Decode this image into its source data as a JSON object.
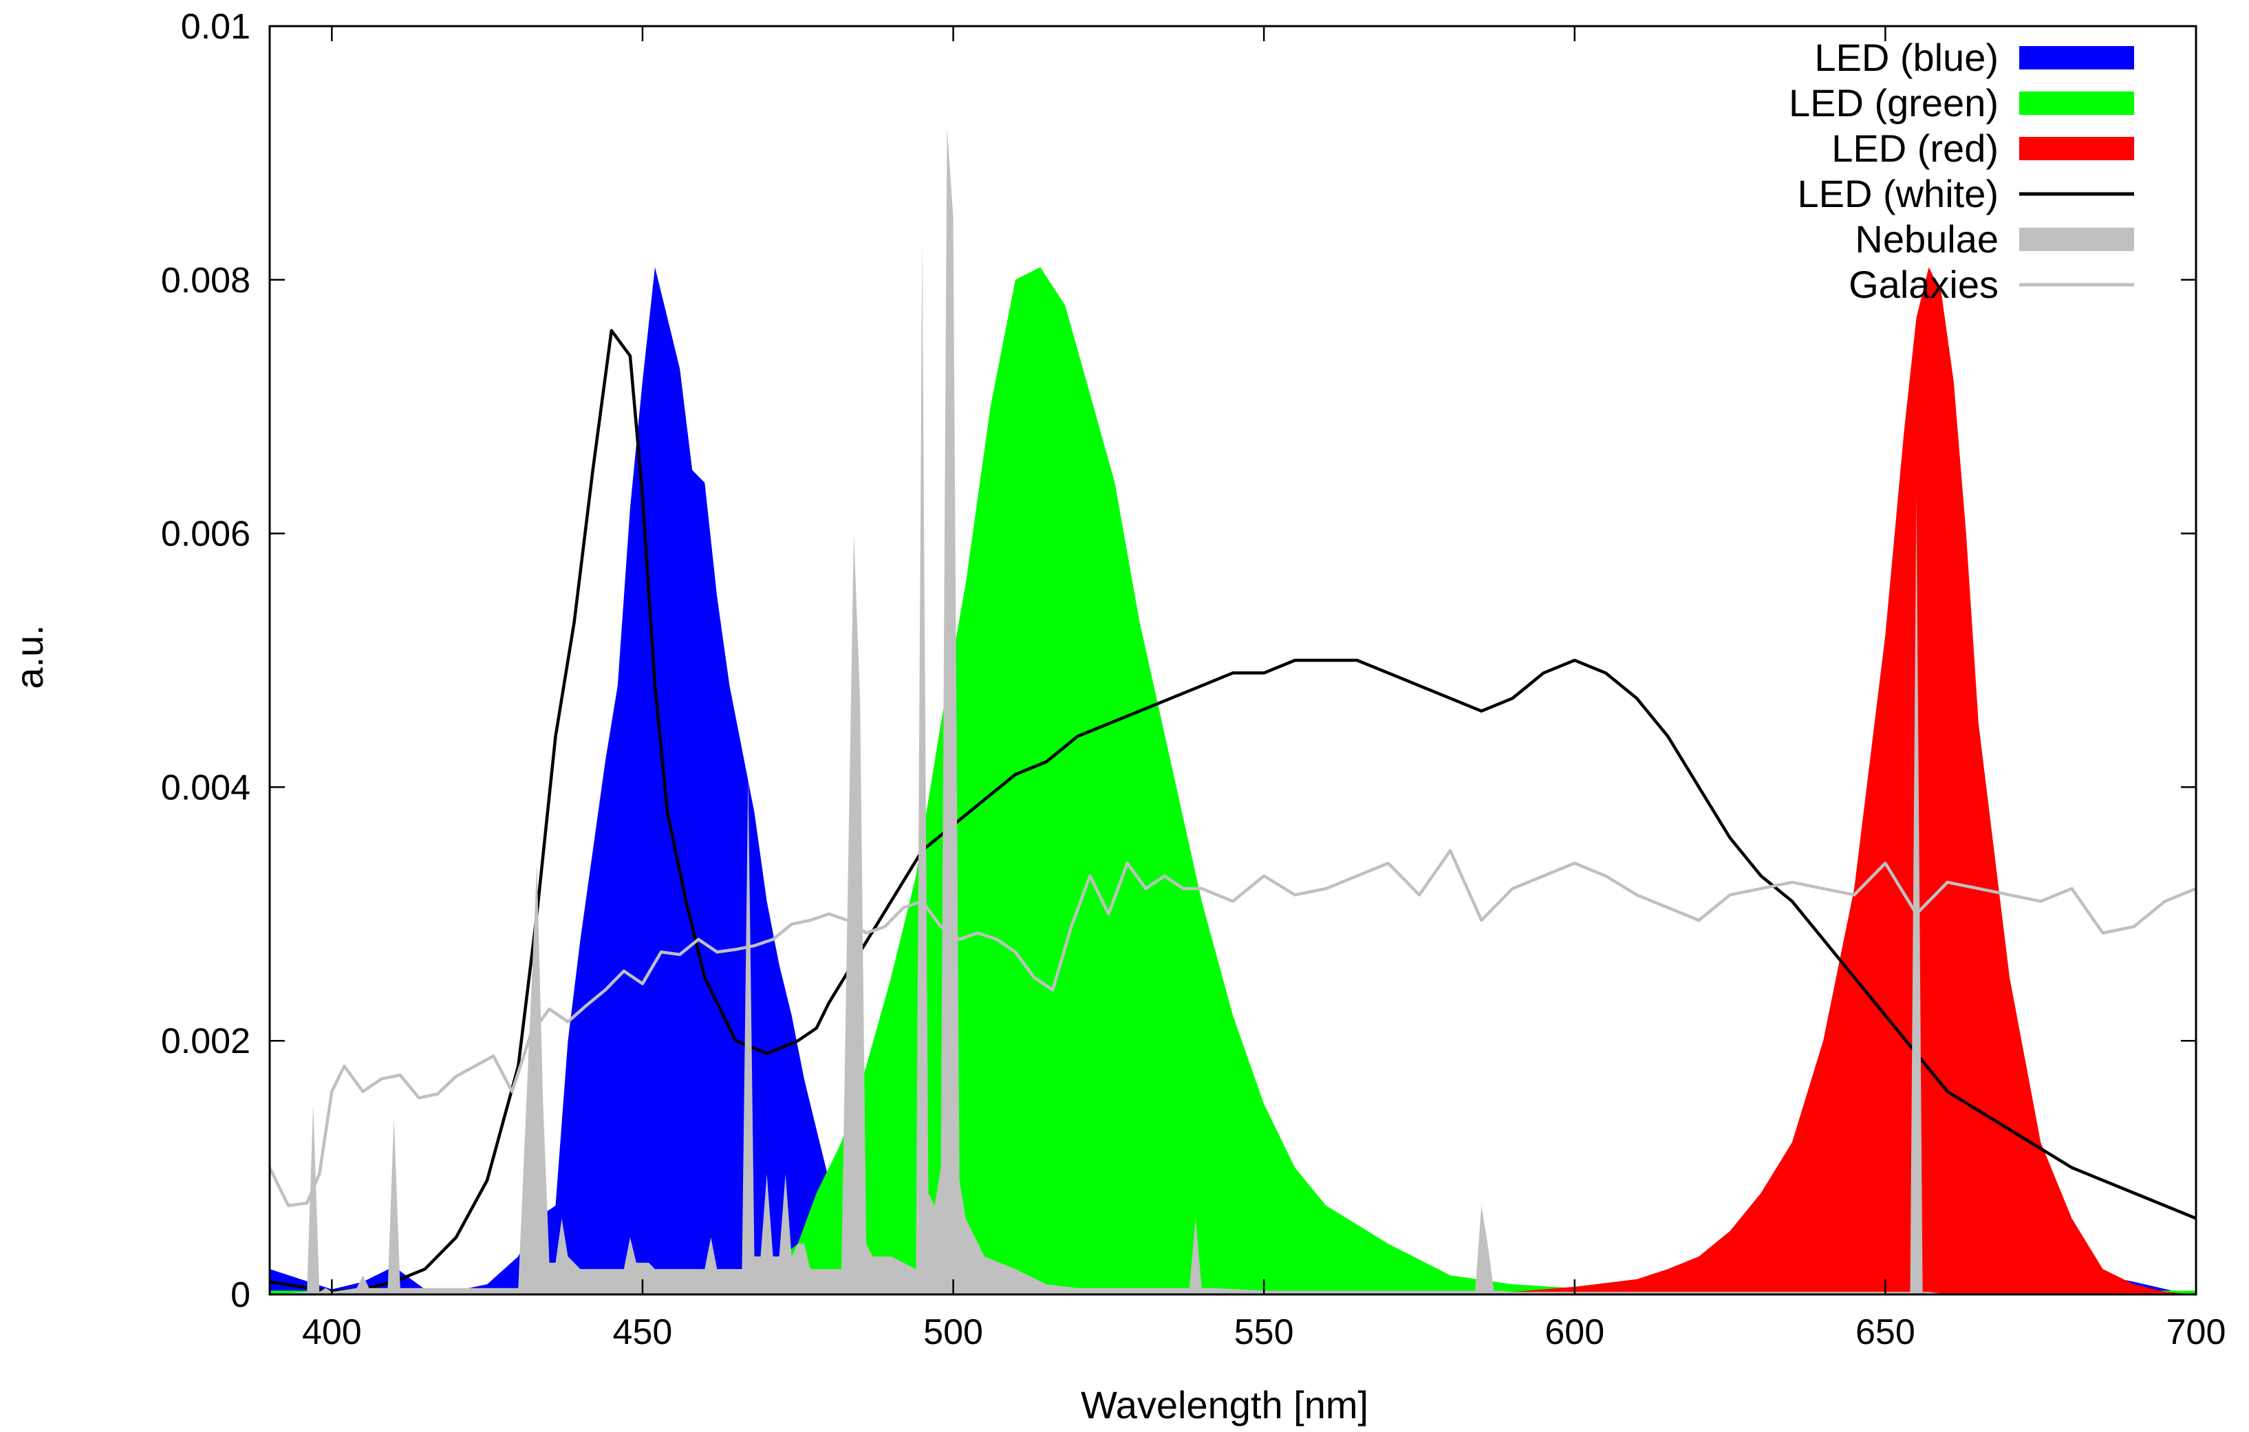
{
  "chart_data": {
    "type": "area",
    "title": "",
    "xlabel": "Wavelength [nm]",
    "ylabel": "a.u.",
    "xlim": [
      390,
      700
    ],
    "ylim": [
      0,
      0.01
    ],
    "xticks": [
      400,
      450,
      500,
      550,
      600,
      650,
      700
    ],
    "xtick_labels": [
      "400",
      "450",
      "500",
      "550",
      "600",
      "650",
      "700"
    ],
    "yticks": [
      0,
      0.002,
      0.004,
      0.006,
      0.008,
      0.01
    ],
    "ytick_labels": [
      "0",
      "0.002",
      "0.004",
      "0.006",
      "0.008",
      "0.01"
    ],
    "grid": false,
    "legend_position": "top-right",
    "series": [
      {
        "name": "LED (blue)",
        "style": "filled",
        "color": "#0000ff",
        "x": [
          390,
          395,
          400,
          405,
          410,
          415,
          420,
          425,
          430,
          433,
          436,
          438,
          440,
          442,
          444,
          446,
          448,
          450,
          452,
          454,
          456,
          458,
          460,
          462,
          464,
          466,
          468,
          470,
          472,
          474,
          476,
          478,
          480,
          482,
          485,
          488,
          490,
          495,
          500,
          505,
          510,
          520,
          530,
          540,
          550,
          560,
          580,
          600,
          620,
          640,
          660,
          680,
          690,
          697,
          700
        ],
        "y": [
          0.0002,
          0.00012,
          4e-05,
          0.0001,
          0.00022,
          4e-05,
          3e-05,
          8e-05,
          0.0003,
          0.0006,
          0.0007,
          0.002,
          0.0028,
          0.0035,
          0.0042,
          0.0048,
          0.0062,
          0.0072,
          0.0081,
          0.0077,
          0.0073,
          0.0065,
          0.0064,
          0.0055,
          0.0048,
          0.0043,
          0.0038,
          0.0031,
          0.0026,
          0.0022,
          0.0017,
          0.0013,
          0.0009,
          0.0006,
          0.0003,
          0.00012,
          5e-05,
          4e-05,
          3e-05,
          3e-05,
          3e-05,
          3e-05,
          3e-05,
          3e-05,
          3e-05,
          3e-05,
          3e-05,
          3e-05,
          3e-05,
          3e-05,
          3e-05,
          0.0002,
          0.0001,
          2e-05,
          0
        ]
      },
      {
        "name": "LED (green)",
        "style": "filled",
        "color": "#00ff00",
        "x": [
          390,
          460,
          470,
          475,
          478,
          482,
          486,
          490,
          494,
          498,
          502,
          506,
          510,
          514,
          518,
          522,
          526,
          530,
          535,
          540,
          545,
          550,
          555,
          560,
          570,
          580,
          590,
          600,
          620,
          650,
          700
        ],
        "y": [
          3e-05,
          3e-05,
          0.0002,
          0.0004,
          0.0008,
          0.0012,
          0.0018,
          0.0025,
          0.0033,
          0.0045,
          0.0056,
          0.007,
          0.008,
          0.0081,
          0.0078,
          0.0071,
          0.0064,
          0.0053,
          0.0042,
          0.0031,
          0.0022,
          0.0015,
          0.001,
          0.0007,
          0.0004,
          0.00015,
          8e-05,
          5e-05,
          3e-05,
          3e-05,
          3e-05
        ]
      },
      {
        "name": "LED (red)",
        "style": "filled",
        "color": "#ff0000",
        "x": [
          390,
          590,
          600,
          610,
          615,
          620,
          625,
          630,
          635,
          640,
          645,
          650,
          653,
          655,
          657,
          659,
          661,
          663,
          665,
          670,
          675,
          680,
          685,
          690,
          695,
          700
        ],
        "y": [
          0,
          2e-05,
          6e-05,
          0.00012,
          0.0002,
          0.0003,
          0.0005,
          0.0008,
          0.0012,
          0.002,
          0.0032,
          0.0052,
          0.0068,
          0.0077,
          0.0081,
          0.0079,
          0.0072,
          0.006,
          0.0045,
          0.0025,
          0.0012,
          0.0006,
          0.0002,
          8e-05,
          2e-05,
          0
        ]
      },
      {
        "name": "LED (white)",
        "style": "line",
        "color": "#000000",
        "x": [
          390,
          395,
          400,
          405,
          410,
          415,
          420,
          425,
          430,
          433,
          436,
          439,
          442,
          445,
          448,
          450,
          452,
          454,
          457,
          460,
          465,
          470,
          475,
          478,
          480,
          485,
          490,
          495,
          500,
          505,
          510,
          515,
          520,
          525,
          530,
          535,
          540,
          545,
          550,
          555,
          560,
          565,
          570,
          575,
          580,
          585,
          590,
          595,
          600,
          605,
          610,
          615,
          620,
          625,
          630,
          635,
          640,
          645,
          650,
          655,
          660,
          670,
          680,
          690,
          700
        ],
        "y": [
          0.0001,
          6e-05,
          2e-05,
          4e-05,
          0.0001,
          0.0002,
          0.00045,
          0.0009,
          0.0018,
          0.003,
          0.0044,
          0.0053,
          0.0065,
          0.0076,
          0.0074,
          0.0063,
          0.0048,
          0.0038,
          0.0031,
          0.0025,
          0.002,
          0.0019,
          0.002,
          0.0021,
          0.0023,
          0.0027,
          0.0031,
          0.0035,
          0.0037,
          0.0039,
          0.0041,
          0.0042,
          0.0044,
          0.0045,
          0.0046,
          0.0047,
          0.0048,
          0.0049,
          0.0049,
          0.005,
          0.005,
          0.005,
          0.0049,
          0.0048,
          0.0047,
          0.0046,
          0.0047,
          0.0049,
          0.005,
          0.0049,
          0.0047,
          0.0044,
          0.004,
          0.0036,
          0.0033,
          0.0031,
          0.0028,
          0.0025,
          0.0022,
          0.0019,
          0.0016,
          0.0013,
          0.001,
          0.0008,
          0.0006
        ]
      },
      {
        "name": "Nebulae",
        "style": "filled",
        "color": "#c0c0c0",
        "x": [
          390,
          396,
          397,
          398,
          399,
          400,
          404,
          405,
          406,
          409,
          410,
          411,
          412,
          430,
          433,
          434,
          435,
          436,
          437,
          438,
          440,
          447,
          448,
          449,
          450,
          451,
          452,
          458,
          459,
          460,
          461,
          462,
          466,
          467,
          468,
          469,
          470,
          471,
          472,
          473,
          474,
          475,
          476,
          477,
          478,
          482,
          484,
          485,
          486,
          487,
          488,
          490,
          494,
          495,
          496,
          497,
          498,
          499,
          500,
          501,
          502,
          503,
          504,
          505,
          510,
          515,
          520,
          530,
          538,
          539,
          540,
          541,
          542,
          550,
          584,
          585,
          586,
          587,
          588,
          590,
          650,
          654,
          655,
          656,
          657,
          660,
          700
        ],
        "y": [
          0,
          2e-05,
          0.0015,
          2e-05,
          5e-05,
          2e-05,
          5e-05,
          0.00015,
          5e-05,
          5e-05,
          0.0014,
          5e-05,
          5e-05,
          5e-05,
          0.0034,
          0.0015,
          0.00025,
          0.00025,
          0.0006,
          0.0003,
          0.0002,
          0.0002,
          0.00045,
          0.00025,
          0.00025,
          0.00025,
          0.0002,
          0.0002,
          0.0002,
          0.0002,
          0.00045,
          0.0002,
          0.0002,
          0.0041,
          0.0003,
          0.0003,
          0.00095,
          0.0003,
          0.0003,
          0.00095,
          0.0003,
          0.0004,
          0.0004,
          0.0002,
          0.0002,
          0.0002,
          0.006,
          0.0047,
          0.0004,
          0.0003,
          0.0003,
          0.0003,
          0.0002,
          0.0083,
          0.0008,
          0.0007,
          0.001,
          0.0092,
          0.0085,
          0.0009,
          0.0006,
          0.0005,
          0.0004,
          0.0003,
          0.0002,
          8e-05,
          5e-05,
          5e-05,
          5e-05,
          0.0006,
          5e-05,
          5e-05,
          5e-05,
          3e-05,
          3e-05,
          0.0007,
          0.0004,
          3e-05,
          3e-05,
          2e-05,
          2e-05,
          2e-05,
          0.0063,
          2e-05,
          2e-05,
          0,
          0
        ]
      },
      {
        "name": "Galaxies",
        "style": "line",
        "color": "#c0c0c0",
        "x": [
          390,
          393,
          396,
          398,
          400,
          402,
          405,
          408,
          411,
          414,
          417,
          420,
          423,
          426,
          429,
          432,
          435,
          438,
          441,
          444,
          447,
          450,
          453,
          456,
          459,
          462,
          465,
          468,
          471,
          474,
          477,
          480,
          483,
          486,
          489,
          492,
          495,
          498,
          501,
          504,
          507,
          510,
          513,
          516,
          519,
          522,
          525,
          528,
          531,
          534,
          537,
          540,
          545,
          550,
          555,
          560,
          565,
          570,
          575,
          580,
          585,
          590,
          595,
          600,
          605,
          610,
          615,
          620,
          625,
          630,
          635,
          640,
          645,
          650,
          655,
          660,
          665,
          670,
          675,
          680,
          685,
          690,
          695,
          700
        ],
        "y": [
          0.001,
          0.0007,
          0.00072,
          0.00095,
          0.0016,
          0.0018,
          0.0016,
          0.0017,
          0.00173,
          0.00155,
          0.00158,
          0.00172,
          0.0018,
          0.00188,
          0.0016,
          0.00205,
          0.00225,
          0.00215,
          0.00228,
          0.0024,
          0.00255,
          0.00245,
          0.0027,
          0.00268,
          0.0028,
          0.0027,
          0.00272,
          0.00275,
          0.0028,
          0.00292,
          0.00295,
          0.003,
          0.00295,
          0.00285,
          0.0029,
          0.00305,
          0.0031,
          0.0029,
          0.0028,
          0.00285,
          0.0028,
          0.0027,
          0.0025,
          0.0024,
          0.0029,
          0.0033,
          0.003,
          0.0034,
          0.0032,
          0.0033,
          0.0032,
          0.0032,
          0.0031,
          0.0033,
          0.00315,
          0.0032,
          0.0033,
          0.0034,
          0.00315,
          0.0035,
          0.00295,
          0.0032,
          0.0033,
          0.0034,
          0.0033,
          0.00315,
          0.00305,
          0.00295,
          0.00315,
          0.0032,
          0.00325,
          0.0032,
          0.00315,
          0.0034,
          0.003,
          0.00325,
          0.0032,
          0.00315,
          0.0031,
          0.0032,
          0.00285,
          0.0029,
          0.0031,
          0.0032
        ]
      }
    ]
  }
}
